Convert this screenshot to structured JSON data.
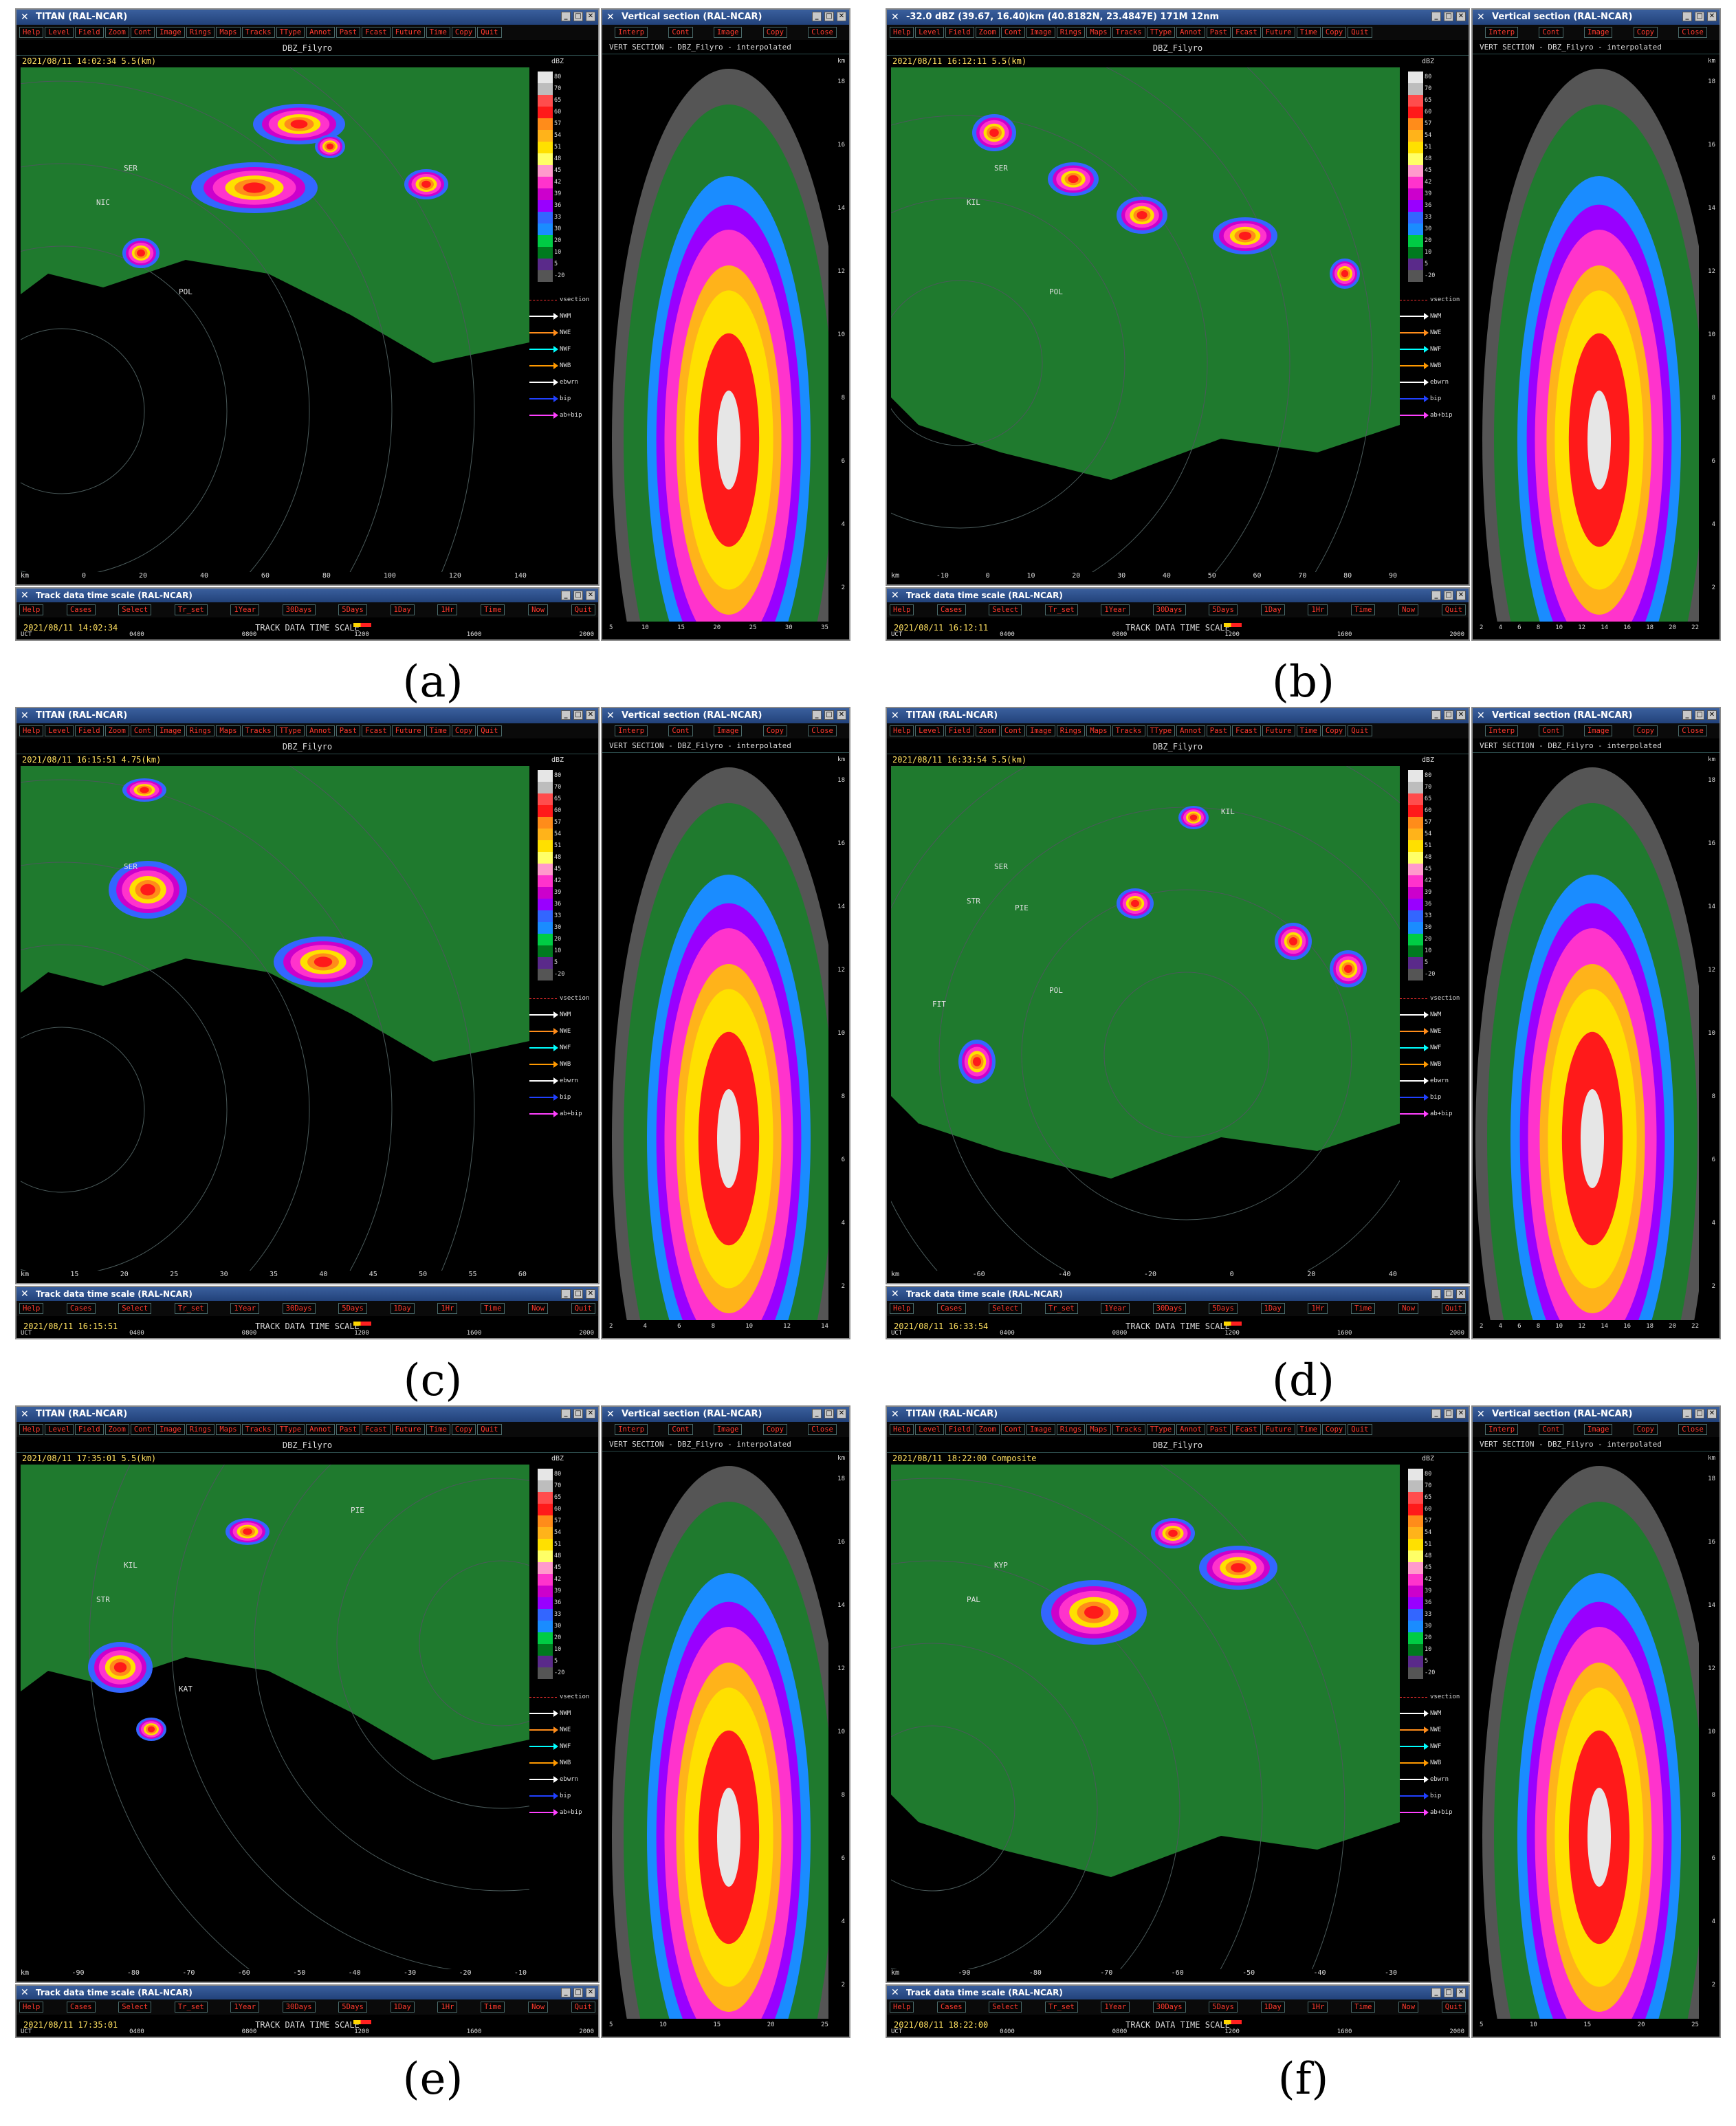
{
  "menu_items": [
    "Help",
    "Level",
    "Field",
    "Zoom",
    "Cont",
    "Image",
    "Rings",
    "Maps",
    "Tracks",
    "TType",
    "Annot",
    "Past",
    "Fcast",
    "Future",
    "Time",
    "Copy",
    "Quit"
  ],
  "vs_menu_items": [
    "Interp",
    "Cont",
    "Image",
    "Copy",
    "Close"
  ],
  "track_menu_items": [
    "Help",
    "Cases",
    "Select",
    "Tr_set",
    "1Year",
    "30Days",
    "5Days",
    "1Day",
    "1Hr",
    "Time",
    "Now",
    "Quit"
  ],
  "colorbar": {
    "unit": "dBZ",
    "labels": [
      "80",
      "70",
      "65",
      "60",
      "57",
      "54",
      "51",
      "48",
      "45",
      "42",
      "39",
      "36",
      "33",
      "30",
      "20",
      "10",
      "5",
      "-20"
    ],
    "colors": [
      "#e6e6e6",
      "#bdbdbd",
      "#ff4d4d",
      "#ff1a1a",
      "#ff8c1a",
      "#ffb31a",
      "#ffe000",
      "#ffff66",
      "#ff99cc",
      "#ff33cc",
      "#cc00cc",
      "#9900ff",
      "#3366ff",
      "#1a8cff",
      "#00cc44",
      "#007a1f",
      "#5a2a8a",
      "#555555"
    ]
  },
  "legend": [
    {
      "label": "vsection",
      "color": "#ff3030",
      "style": "dashed"
    },
    {
      "label": "NWM",
      "color": "#ffffff"
    },
    {
      "label": "NWE",
      "color": "#ff8c1a"
    },
    {
      "label": "NWF",
      "color": "#00ffff"
    },
    {
      "label": "NWB",
      "color": "#ff9900"
    },
    {
      "label": "ebwrn",
      "color": "#ffffff"
    },
    {
      "label": "bip",
      "color": "#2040ff"
    },
    {
      "label": "ab+bip",
      "color": "#ff40ff"
    }
  ],
  "vs_title": "Vertical section (RAL-NCAR)",
  "vs_sub": "VERT SECTION - DBZ_Filyro - interpolated",
  "track_title": "Track data time scale (RAL-NCAR)",
  "track_label": "TRACK DATA TIME SCALE",
  "track_axis": [
    "UCT",
    "0400",
    "0800",
    "1200",
    "1600",
    "2000"
  ],
  "vs_y": [
    "18",
    "16",
    "14",
    "12",
    "10",
    "8",
    "6",
    "4",
    "2"
  ],
  "panels": [
    {
      "caption": "(a)",
      "title": "TITAN (RAL-NCAR)",
      "field": "DBZ_Filyro",
      "timestamp": "2021/08/11 14:02:34  5.5(km)",
      "track_time": "2021/08/11 14:02:34",
      "labels": [
        {
          "t": "SER"
        },
        {
          "t": "NIC"
        },
        {
          "t": "POL"
        }
      ],
      "xaxis": [
        "km",
        "0",
        "20",
        "40",
        "60",
        "80",
        "100",
        "120",
        "140"
      ],
      "vs_x": [
        "5",
        "10",
        "15",
        "20",
        "25",
        "30",
        "35"
      ]
    },
    {
      "caption": "(b)",
      "title": "-32.0 dBZ (39.67, 16.40)km (40.8182N, 23.4847E) 171M 12nm",
      "field": "DBZ_Filyro",
      "timestamp": "2021/08/11 16:12:11  5.5(km)",
      "track_time": "2021/08/11 16:12:11",
      "labels": [
        {
          "t": "SER"
        },
        {
          "t": "KIL"
        },
        {
          "t": "POL"
        }
      ],
      "xaxis": [
        "km",
        "-10",
        "0",
        "10",
        "20",
        "30",
        "40",
        "50",
        "60",
        "70",
        "80",
        "90"
      ],
      "vs_x": [
        "2",
        "4",
        "6",
        "8",
        "10",
        "12",
        "14",
        "16",
        "18",
        "20",
        "22"
      ]
    },
    {
      "caption": "(c)",
      "title": "TITAN (RAL-NCAR)",
      "field": "DBZ_Filyro",
      "timestamp": "2021/08/11 16:15:51  4.75(km)",
      "track_time": "2021/08/11 16:15:51",
      "labels": [
        {
          "t": "SER"
        }
      ],
      "xaxis": [
        "km",
        "15",
        "20",
        "25",
        "30",
        "35",
        "40",
        "45",
        "50",
        "55",
        "60"
      ],
      "vs_x": [
        "2",
        "4",
        "6",
        "8",
        "10",
        "12",
        "14"
      ]
    },
    {
      "caption": "(d)",
      "title": "TITAN (RAL-NCAR)",
      "field": "DBZ_Filyro",
      "timestamp": "2021/08/11 16:33:54  5.5(km)",
      "track_time": "2021/08/11 16:33:54",
      "labels": [
        {
          "t": "SER"
        },
        {
          "t": "STR"
        },
        {
          "t": "POL"
        },
        {
          "t": "KIL"
        },
        {
          "t": "PIE"
        },
        {
          "t": "FIT"
        }
      ],
      "xaxis": [
        "km",
        "-60",
        "-40",
        "-20",
        "0",
        "20",
        "40"
      ],
      "vs_x": [
        "2",
        "4",
        "6",
        "8",
        "10",
        "12",
        "14",
        "16",
        "18",
        "20",
        "22"
      ]
    },
    {
      "caption": "(e)",
      "title": "TITAN (RAL-NCAR)",
      "field": "DBZ_Filyro",
      "timestamp": "2021/08/11 17:35:01  5.5(km)",
      "track_time": "2021/08/11 17:35:01",
      "labels": [
        {
          "t": "KIL"
        },
        {
          "t": "STR"
        },
        {
          "t": "KAT"
        },
        {
          "t": "PIE"
        }
      ],
      "xaxis": [
        "km",
        "-90",
        "-80",
        "-70",
        "-60",
        "-50",
        "-40",
        "-30",
        "-20",
        "-10"
      ],
      "vs_x": [
        "5",
        "10",
        "15",
        "20",
        "25"
      ]
    },
    {
      "caption": "(f)",
      "title": "TITAN (RAL-NCAR)",
      "field": "DBZ_Filyro",
      "timestamp": "2021/08/11 18:22:00  Composite",
      "track_time": "2021/08/11 18:22:00",
      "labels": [
        {
          "t": "KYP"
        },
        {
          "t": "PAL"
        }
      ],
      "xaxis": [
        "km",
        "-90",
        "-80",
        "-70",
        "-60",
        "-50",
        "-40",
        "-30"
      ],
      "vs_x": [
        "5",
        "10",
        "15",
        "20",
        "25"
      ]
    }
  ]
}
